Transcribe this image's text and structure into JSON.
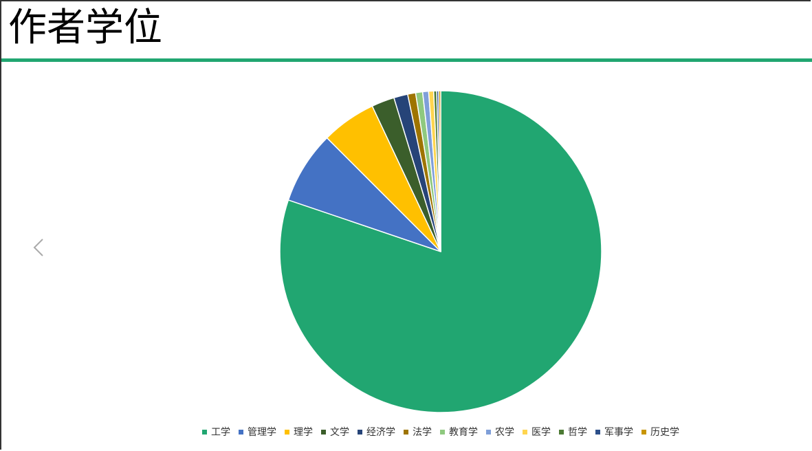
{
  "chart_data": {
    "type": "pie",
    "title": "作者学位",
    "categories": [
      "工学",
      "管理学",
      "理学",
      "文学",
      "经济学",
      "法学",
      "教育学",
      "农学",
      "医学",
      "哲学",
      "军事学",
      "历史学"
    ],
    "values": [
      80.2,
      7.3,
      5.5,
      2.3,
      1.4,
      0.8,
      0.7,
      0.6,
      0.5,
      0.3,
      0.2,
      0.2
    ],
    "colors": [
      "#21a671",
      "#4472c4",
      "#ffc000",
      "#3b5e2b",
      "#264478",
      "#9e7400",
      "#8fc97f",
      "#7f9fd9",
      "#ffd54f",
      "#4c7a34",
      "#2d4f8a",
      "#c89500"
    ],
    "legend": "bottom"
  }
}
